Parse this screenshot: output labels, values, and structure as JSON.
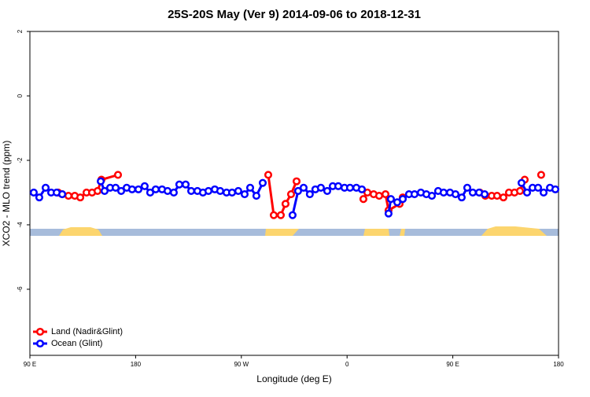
{
  "chart_data": {
    "type": "line",
    "title": "25S-20S May (Ver 9)   2014-09-06 to 2018-12-31",
    "x_label": "Longitude (deg E)",
    "y_label": "XCO2 - MLO trend (ppm)",
    "xlim": [
      90,
      540
    ],
    "ylim": [
      -8.05,
      2
    ],
    "xticks": [
      {
        "value": 90,
        "label": "90 E"
      },
      180,
      {
        "value": 270,
        "label": "90 W"
      },
      {
        "value": 360,
        "label": "0"
      },
      {
        "value": 450,
        "label": "90 E"
      },
      {
        "value": 540,
        "label": "180"
      }
    ],
    "yticks": [
      2,
      0,
      -2,
      -4,
      -6
    ],
    "legend": "bottom-left",
    "series": [
      {
        "name": "Land (Nadir&Glint)",
        "color": "#ff0000",
        "x": [
          114.1,
          117.5,
          122.8,
          128.2,
          132.9,
          138.2,
          142.9,
          147.6,
          150.9,
          165.0,
          170,
          292.9,
          297.6,
          303.6,
          307.6,
          312.3,
          317.0,
          330,
          373.9,
          377.3,
          382.6,
          387.3,
          392.7,
          395.3,
          404.7,
          407.4,
          450,
          473.0,
          477.7,
          483.1,
          487.7,
          493.1,
          497.8,
          502.5,
          507.2,
          511.2,
          520,
          525.2
        ],
        "values": [
          -3.0,
          -3.05,
          -3.1,
          -3.1,
          -3.15,
          -3.0,
          -3.0,
          -2.95,
          -2.6,
          -2.45,
          null,
          -2.45,
          -3.7,
          -3.7,
          -3.35,
          -3.05,
          -2.65,
          null,
          -3.2,
          -3.0,
          -3.05,
          -3.1,
          -3.05,
          -3.55,
          -3.35,
          -3.15,
          null,
          -3.0,
          -3.1,
          -3.1,
          -3.1,
          -3.15,
          -3.0,
          -3.0,
          -2.95,
          -2.6,
          null,
          -2.45
        ]
      },
      {
        "name": "Ocean (Glint)",
        "color": "#0000ff",
        "x": [
          93.3,
          98.0,
          103.4,
          108.1,
          112.8,
          117.5,
          135,
          150.3,
          153.6,
          158.3,
          163.0,
          167.7,
          172.4,
          177.0,
          182.4,
          187.7,
          192.4,
          197.1,
          202.5,
          207.2,
          212.5,
          217.2,
          222.6,
          227.3,
          232.6,
          237.3,
          242.0,
          247.4,
          252.0,
          257.4,
          262.1,
          267.4,
          272.8,
          277.5,
          282.8,
          288.2,
          300,
          313.6,
          318.3,
          323.0,
          328.3,
          333.0,
          337.7,
          343.1,
          347.8,
          352.5,
          357.8,
          362.5,
          367.9,
          372.6,
          385,
          395.3,
          397.3,
          402.7,
          407.4,
          412.7,
          417.4,
          422.8,
          427.5,
          432.2,
          437.5,
          442.2,
          447.6,
          452.3,
          457.6,
          462.3,
          467.0,
          472.4,
          477.1,
          495,
          508.5,
          513.2,
          517.9,
          522.6,
          527.3,
          532.7,
          537.3
        ],
        "values": [
          -3.0,
          -3.15,
          -2.85,
          -3.0,
          -3.0,
          -3.05,
          null,
          -2.65,
          -2.95,
          -2.85,
          -2.85,
          -2.95,
          -2.85,
          -2.9,
          -2.9,
          -2.8,
          -3.0,
          -2.9,
          -2.9,
          -2.95,
          -3.0,
          -2.75,
          -2.75,
          -2.95,
          -2.95,
          -3.0,
          -2.95,
          -2.9,
          -2.95,
          -3.0,
          -3.0,
          -2.95,
          -3.05,
          -2.85,
          -3.1,
          -2.7,
          null,
          -3.7,
          -2.95,
          -2.85,
          -3.05,
          -2.9,
          -2.85,
          -2.95,
          -2.8,
          -2.8,
          -2.85,
          -2.85,
          -2.85,
          -2.9,
          null,
          -3.65,
          -3.2,
          -3.3,
          -3.2,
          -3.05,
          -3.05,
          -3.0,
          -3.05,
          -3.1,
          -2.95,
          -3.0,
          -3.0,
          -3.05,
          -3.15,
          -2.85,
          -3.0,
          -3.0,
          -3.05,
          null,
          -2.7,
          -3.0,
          -2.85,
          -2.85,
          -3.0,
          -2.85,
          -2.9
        ]
      }
    ]
  }
}
